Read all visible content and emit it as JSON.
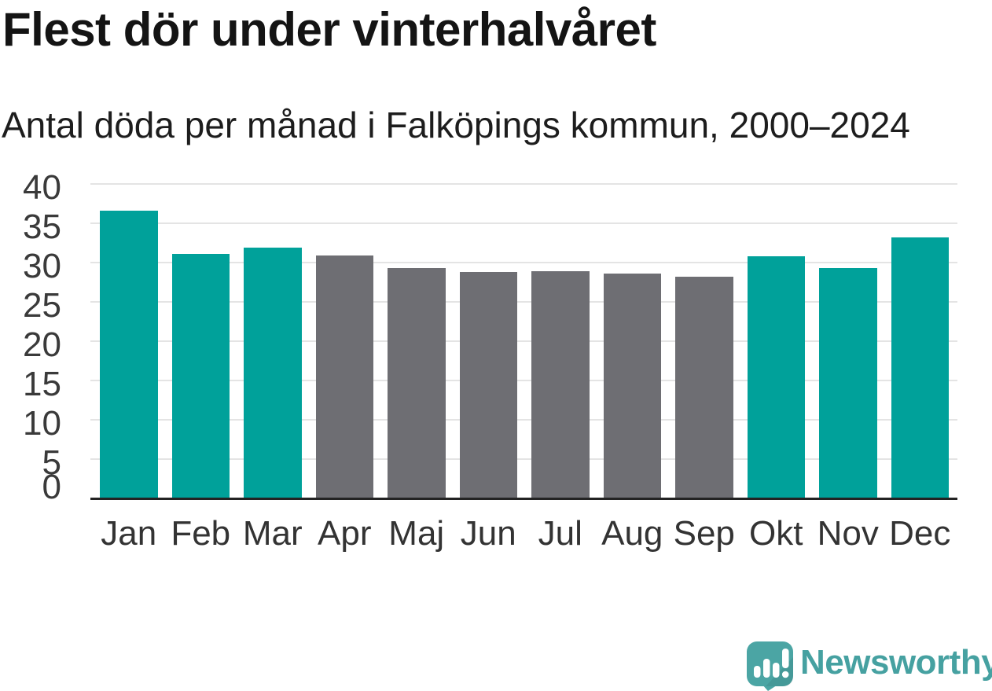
{
  "chart_data": {
    "type": "bar",
    "title": "Flest dör under vinterhalvåret",
    "subtitle": "Antal döda per månad i Falköpings kommun, 2000–2024",
    "categories": [
      "Jan",
      "Feb",
      "Mar",
      "Apr",
      "Maj",
      "Jun",
      "Jul",
      "Aug",
      "Sep",
      "Okt",
      "Nov",
      "Dec"
    ],
    "values": [
      36.6,
      31.1,
      31.9,
      30.9,
      29.3,
      28.8,
      28.9,
      28.6,
      28.2,
      30.8,
      29.3,
      33.2
    ],
    "season_by_month": [
      "winter",
      "winter",
      "winter",
      "summer",
      "summer",
      "summer",
      "summer",
      "summer",
      "summer",
      "winter",
      "winter",
      "winter"
    ],
    "colors": {
      "winter": "#00a19a",
      "summer": "#6e6e73"
    },
    "xlabel": "",
    "ylabel": "",
    "ylim": [
      0,
      40
    ],
    "yticks": [
      0,
      5,
      10,
      15,
      20,
      25,
      30,
      35,
      40
    ],
    "grid": "horizontal",
    "legend": "none"
  },
  "footer": {
    "brand": "Newsworthy",
    "brand_color": "#46a1a1",
    "logo_icon": "newsworthy-speech-bubble-bar-chart-icon"
  }
}
